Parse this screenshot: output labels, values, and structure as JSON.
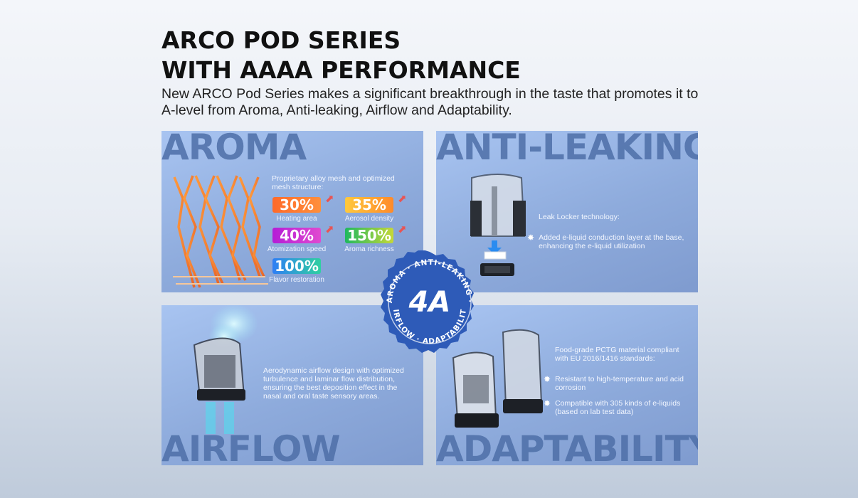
{
  "heading": {
    "line1": "ARCO POD SERIES",
    "line2": "WITH AAAA PERFORMANCE"
  },
  "subtitle": {
    "line1": "New ARCO Pod Series makes a significant breakthrough in the taste that promotes it to",
    "line2": "A-level from Aroma, Anti-leaking, Airflow and Adaptability."
  },
  "aroma": {
    "title": "AROMA",
    "desc_line1": "Proprietary alloy mesh and optimized",
    "desc_line2": "mesh structure:",
    "stats": [
      {
        "value": "30%",
        "label": "Heating area"
      },
      {
        "value": "35%",
        "label": "Aerosol density"
      },
      {
        "value": "40%",
        "label": "Atomization speed"
      },
      {
        "value": "150%",
        "label": "Aroma richness"
      },
      {
        "value": "100%",
        "label": "Flavor restoration"
      }
    ]
  },
  "anti_leaking": {
    "title": "ANTI-LEAKING",
    "tech": "Leak Locker technology:",
    "bullet_line1": "Added e-liquid conduction layer at the base,",
    "bullet_line2": "enhancing the e-liquid utilization"
  },
  "airflow": {
    "title": "AIRFLOW",
    "desc_line1": "Aerodynamic airflow design with optimized",
    "desc_line2": "turbulence and laminar flow distribution,",
    "desc_line3": "ensuring the best deposition effect in the",
    "desc_line4": "nasal and oral taste sensory areas."
  },
  "adaptability": {
    "title": "ADAPTABILITY",
    "intro_line1": "Food-grade PCTG material compliant",
    "intro_line2": "with EU 2016/1416 standards:",
    "b1_line1": "Resistant to high-temperature and acid",
    "b1_line2": "corrosion",
    "b2_line1": "Compatible with 305 kinds of e-liquids",
    "b2_line2": "(based on lab test data)"
  },
  "seal": {
    "center": "4A",
    "top_arc": "AROMA · ANTI-LEAKING ·",
    "bottom_arc": "AIRFLOW · ADAPTABILITY"
  },
  "icons": [
    "arrow-up-icon",
    "star-bullet-icon",
    "mesh-coil-icon",
    "pod-icon",
    "vapor-icon"
  ],
  "colors": {
    "panel": "#94b1e2",
    "big_title": "#4e6fa8",
    "seal": "#2e5bb8",
    "badge_30": "#ff7a2e",
    "badge_35": "#ffb23d",
    "badge_40": "#c02ccf",
    "badge_150": "#2fc06a",
    "badge_100": "#3a8ef5"
  }
}
